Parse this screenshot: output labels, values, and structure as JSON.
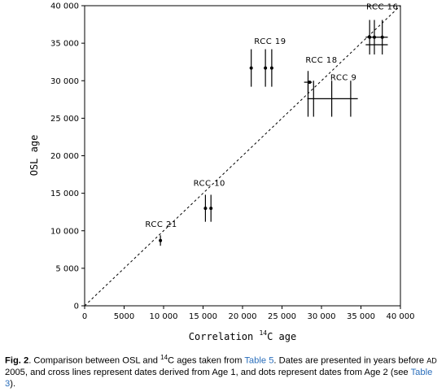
{
  "chart_data": {
    "type": "scatter",
    "title": "",
    "xlabel_pre": "Correlation ",
    "xlabel_sup": "14",
    "xlabel_post": "C age",
    "ylabel": "OSL age",
    "xlim": [
      0,
      40000
    ],
    "ylim": [
      0,
      40000
    ],
    "x_ticks": [
      0,
      5000,
      10000,
      15000,
      20000,
      25000,
      30000,
      35000,
      40000
    ],
    "x_tick_labels": [
      "0",
      "5000",
      "10 000",
      "15 000",
      "20 000",
      "25 000",
      "30 000",
      "35 000",
      "40 000"
    ],
    "y_ticks": [
      0,
      5000,
      10000,
      15000,
      20000,
      25000,
      30000,
      35000,
      40000
    ],
    "y_tick_labels": [
      "0",
      "5 000",
      "10 000",
      "15 000",
      "20 000",
      "25 000",
      "30 000",
      "35 000",
      "40 000"
    ],
    "reference_line": {
      "style": "dashed",
      "from": [
        0,
        0
      ],
      "to": [
        40000,
        40000
      ]
    },
    "labels": [
      {
        "text": "RCC 21",
        "x": 9700,
        "y": 10500
      },
      {
        "text": "RCC 10",
        "x": 15800,
        "y": 16000
      },
      {
        "text": "RCC 19",
        "x": 23500,
        "y": 34900
      },
      {
        "text": "RCC 18",
        "x": 30000,
        "y": 32400
      },
      {
        "text": "RCC 9",
        "x": 32800,
        "y": 30100
      },
      {
        "text": "RCC 16",
        "x": 37700,
        "y": 39500
      }
    ],
    "series": [
      {
        "name": "Age 1",
        "marker": "cross",
        "points": [
          {
            "x": 9600,
            "y": 8700,
            "xerr": 0,
            "yerr": 700
          },
          {
            "x": 15300,
            "y": 13000,
            "xerr": 0,
            "yerr": 1800
          },
          {
            "x": 16000,
            "y": 13000,
            "xerr": 0,
            "yerr": 1800
          },
          {
            "x": 21100,
            "y": 31700,
            "xerr": 0,
            "yerr": 2500
          },
          {
            "x": 22900,
            "y": 31700,
            "xerr": 0,
            "yerr": 2500
          },
          {
            "x": 23700,
            "y": 31700,
            "xerr": 0,
            "yerr": 2500
          },
          {
            "x": 28300,
            "y": 29800,
            "xerr": 500,
            "yerr": 1500
          },
          {
            "x": 28300,
            "y": 27600,
            "xerr": 0,
            "yerr": 2400
          },
          {
            "x": 29000,
            "y": 27600,
            "xerr": 0,
            "yerr": 2400
          },
          {
            "x": 31300,
            "y": 27600,
            "xerr": 0,
            "yerr": 2400
          },
          {
            "x": 33700,
            "y": 27600,
            "xerr": 0,
            "yerr": 2400
          },
          {
            "x": 31400,
            "y": 27600,
            "xerr": 3200,
            "yerr": 0
          },
          {
            "x": 36100,
            "y": 35800,
            "xerr": 0,
            "yerr": 2300
          },
          {
            "x": 36700,
            "y": 35800,
            "xerr": 0,
            "yerr": 2300
          },
          {
            "x": 37700,
            "y": 35800,
            "xerr": 0,
            "yerr": 2300
          },
          {
            "x": 37000,
            "y": 35800,
            "xerr": 1400,
            "yerr": 0
          },
          {
            "x": 37000,
            "y": 34800,
            "xerr": 1400,
            "yerr": 0
          }
        ]
      },
      {
        "name": "Age 2",
        "marker": "dot",
        "points": [
          {
            "x": 9600,
            "y": 8700
          },
          {
            "x": 15300,
            "y": 13000
          },
          {
            "x": 16000,
            "y": 13000
          },
          {
            "x": 21100,
            "y": 31700
          },
          {
            "x": 22900,
            "y": 31700
          },
          {
            "x": 23700,
            "y": 31700
          },
          {
            "x": 28500,
            "y": 29800
          },
          {
            "x": 36100,
            "y": 35800
          },
          {
            "x": 36700,
            "y": 35800
          },
          {
            "x": 37700,
            "y": 35800
          }
        ]
      }
    ]
  },
  "caption": {
    "fig_label": "Fig. 2",
    "text_1": ". Comparison between OSL and ",
    "sup_1": "14",
    "text_2": "C ages taken from ",
    "link_1": "Table 5",
    "text_3": ". Dates are presented in years before ",
    "era": "AD",
    "text_4": " 2005, and cross lines represent dates derived from Age 1, and dots represent dates from Age 2 (see ",
    "link_2": "Table 3",
    "text_5": ")."
  }
}
